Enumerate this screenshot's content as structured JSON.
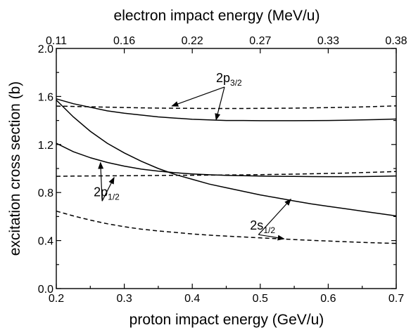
{
  "chart_data": {
    "type": "line",
    "title": "",
    "xlabel": "proton impact energy (GeV/u)",
    "ylabel": "excitation cross section (b)",
    "x2label": "electron impact energy (MeV/u)",
    "xlim": [
      0.2,
      0.7
    ],
    "ylim": [
      0.0,
      2.0
    ],
    "x_ticks": [
      "0.2",
      "0.3",
      "0.4",
      "0.5",
      "0.6",
      "0.7"
    ],
    "y_ticks": [
      "0.0",
      "0.4",
      "0.8",
      "1.2",
      "1.6",
      "2.0"
    ],
    "x2_ticks": [
      "0.11",
      "0.16",
      "0.22",
      "0.27",
      "0.33",
      "0.38"
    ],
    "grid": false,
    "legend": "none",
    "x": [
      0.2,
      0.225,
      0.25,
      0.275,
      0.3,
      0.325,
      0.35,
      0.375,
      0.4,
      0.425,
      0.45,
      0.475,
      0.5,
      0.525,
      0.55,
      0.575,
      0.6,
      0.625,
      0.65,
      0.675,
      0.7
    ],
    "series": [
      {
        "style": "solid",
        "values": [
          1.58,
          1.54,
          1.51,
          1.48,
          1.46,
          1.445,
          1.43,
          1.42,
          1.41,
          1.405,
          1.4,
          1.4,
          1.398,
          1.398,
          1.398,
          1.399,
          1.4,
          1.402,
          1.405,
          1.408,
          1.412
        ]
      },
      {
        "style": "dashed",
        "values": [
          1.52,
          1.517,
          1.514,
          1.511,
          1.508,
          1.505,
          1.503,
          1.502,
          1.501,
          1.5,
          1.5,
          1.5,
          1.501,
          1.502,
          1.503,
          1.505,
          1.507,
          1.51,
          1.513,
          1.517,
          1.522
        ]
      },
      {
        "style": "solid",
        "values": [
          1.57,
          1.43,
          1.31,
          1.21,
          1.13,
          1.06,
          1.0,
          0.95,
          0.91,
          0.87,
          0.84,
          0.81,
          0.78,
          0.755,
          0.73,
          0.705,
          0.685,
          0.665,
          0.645,
          0.625,
          0.605
        ]
      },
      {
        "style": "solid",
        "values": [
          1.21,
          1.14,
          1.09,
          1.05,
          1.02,
          0.995,
          0.978,
          0.965,
          0.955,
          0.948,
          0.943,
          0.94,
          0.937,
          0.935,
          0.934,
          0.933,
          0.932,
          0.932,
          0.933,
          0.935,
          0.938
        ]
      },
      {
        "style": "dashed",
        "values": [
          0.935,
          0.937,
          0.938,
          0.939,
          0.94,
          0.941,
          0.942,
          0.943,
          0.944,
          0.945,
          0.946,
          0.947,
          0.949,
          0.951,
          0.953,
          0.956,
          0.959,
          0.962,
          0.966,
          0.97,
          0.975
        ]
      },
      {
        "style": "dashed",
        "values": [
          0.645,
          0.605,
          0.57,
          0.54,
          0.515,
          0.495,
          0.48,
          0.468,
          0.455,
          0.445,
          0.437,
          0.43,
          0.422,
          0.415,
          0.408,
          0.402,
          0.396,
          0.39,
          0.385,
          0.38,
          0.376
        ]
      }
    ],
    "annotations": [
      {
        "base": "2p",
        "sub": "3/2",
        "at": [
          0.435,
          1.72
        ],
        "arrows_to": [
          [
            0.37,
            1.52
          ],
          [
            0.435,
            1.405
          ]
        ]
      },
      {
        "base": "2p",
        "sub": "1/2",
        "at": [
          0.255,
          0.77
        ],
        "arrows_to": [
          [
            0.265,
            1.05
          ],
          [
            0.285,
            0.925
          ]
        ]
      },
      {
        "base": "2s",
        "sub": "1/2",
        "at": [
          0.485,
          0.49
        ],
        "arrows_to": [
          [
            0.545,
            0.745
          ],
          [
            0.535,
            0.415
          ]
        ]
      }
    ]
  }
}
